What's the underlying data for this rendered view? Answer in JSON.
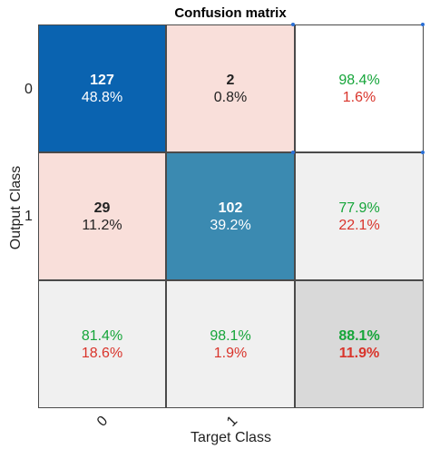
{
  "chart_data": {
    "type": "heatmap",
    "title": "Confusion matrix",
    "xlabel": "Target Class",
    "ylabel": "Output Class",
    "x_tick_labels": [
      "0",
      "1"
    ],
    "y_tick_labels": [
      "0",
      "1"
    ],
    "rows": [
      [
        {
          "count": "127",
          "pct": "48.8%",
          "kind": "diag-high"
        },
        {
          "count": "2",
          "pct": "0.8%",
          "kind": "offdiag"
        },
        {
          "good": "98.4%",
          "bad": "1.6%",
          "kind": "summary-white"
        }
      ],
      [
        {
          "count": "29",
          "pct": "11.2%",
          "kind": "offdiag"
        },
        {
          "count": "102",
          "pct": "39.2%",
          "kind": "diag-mid"
        },
        {
          "good": "77.9%",
          "bad": "22.1%",
          "kind": "summary"
        }
      ],
      [
        {
          "good": "81.4%",
          "bad": "18.6%",
          "kind": "summary"
        },
        {
          "good": "98.1%",
          "bad": "1.9%",
          "kind": "summary"
        },
        {
          "good": "88.1%",
          "bad": "11.9%",
          "kind": "overall"
        }
      ]
    ],
    "colors": {
      "diag_high": "#0a63b0",
      "diag_mid": "#3b8ab1",
      "offdiag": "#f9dfda",
      "summary": "#f0f0f0",
      "summary_white": "#ffffff",
      "overall": "#d9d9d9",
      "good_text": "#16a53a",
      "bad_text": "#d9342b",
      "dark_text": "#222222",
      "light_text": "#ffffff"
    }
  }
}
